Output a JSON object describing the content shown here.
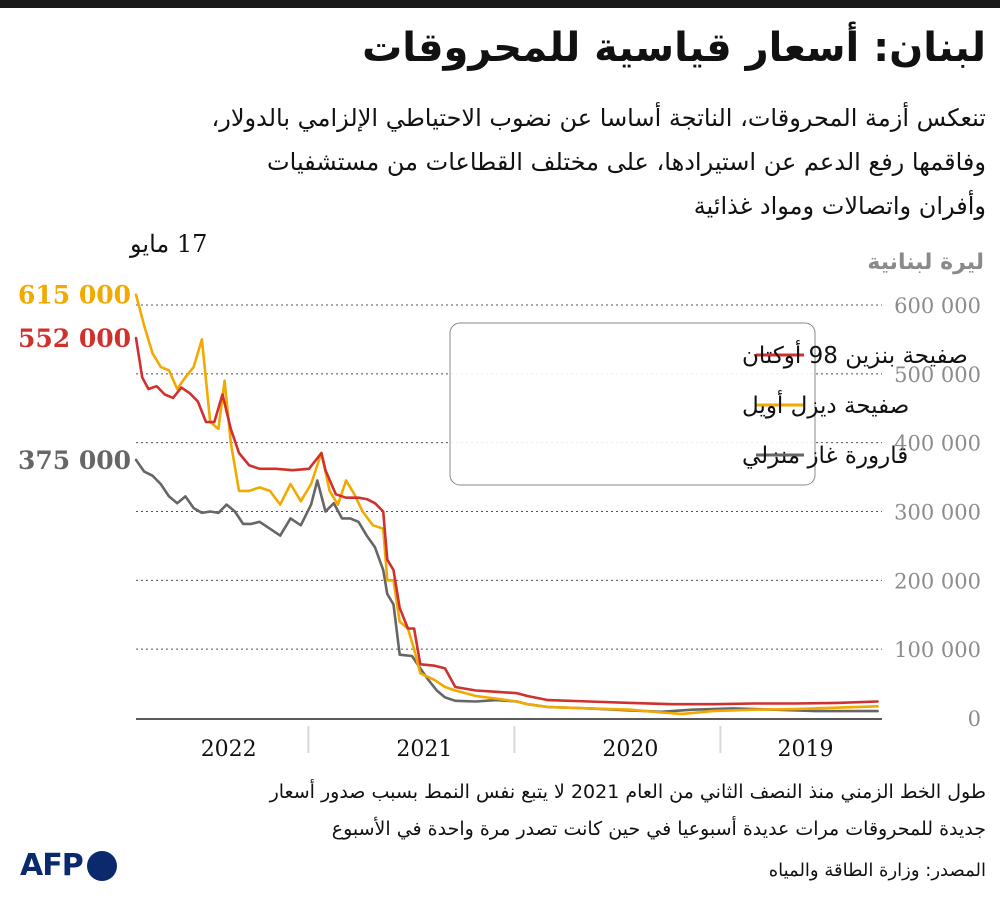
{
  "header": {
    "title": "لبنان: أسعار قياسية للمحروقات",
    "subtitle_lines": [
      "تنعكس أزمة المحروقات، الناتجة أساسا عن نضوب الاحتياطي الإلزامي بالدولار،",
      "وفاقمها رفع الدعم عن استيرادها، على مختلف القطاعات من مستشفيات",
      "وأفران واتصالات ومواد غذائية"
    ]
  },
  "footer": {
    "note_lines": [
      "طول الخط الزمني منذ النصف الثاني من العام 2021 لا يتبع نفس النمط بسبب صدور أسعار",
      "جديدة للمحروقات مرات عديدة أسبوعيا في حين كانت تصدر مرة واحدة في الأسبوع"
    ],
    "source": "المصدر: وزارة الطاقة والمياه",
    "logo_text": "AFP"
  },
  "chart_data": {
    "type": "line",
    "title": "لبنان: أسعار قياسية للمحروقات",
    "ylabel": "ليرة لبنانية",
    "ylim": [
      0,
      600000
    ],
    "y_ticks": [
      0,
      100000,
      200000,
      300000,
      400000,
      500000,
      600000
    ],
    "y_tick_labels": [
      "0",
      "100 000",
      "200 000",
      "300 000",
      "400 000",
      "500 000",
      "600 000"
    ],
    "x_axis_direction": "right-to-left (time runs from right to left)",
    "x_categories": [
      "2022",
      "2021",
      "2020",
      "2019"
    ],
    "x_category_spans": [
      [
        0,
        0.9
      ],
      [
        0.9,
        1.9
      ],
      [
        1.9,
        2.9
      ],
      [
        2.9,
        3.6
      ]
    ],
    "x_unit": "time position from the most recent date (left edge = 0) towards the past",
    "latest_date_label": "17 مايو",
    "grid": "horizontal dashed lines",
    "legend_position": "upper-middle, boxed",
    "series": [
      {
        "name": "صفيحة بنزين 98 أوكتان",
        "color": "#d0312d",
        "last_value": 552000,
        "last_value_label": "552 000",
        "points": [
          [
            0,
            552000
          ],
          [
            0.03,
            495000
          ],
          [
            0.06,
            478000
          ],
          [
            0.1,
            482000
          ],
          [
            0.14,
            470000
          ],
          [
            0.18,
            465000
          ],
          [
            0.22,
            480000
          ],
          [
            0.26,
            472000
          ],
          [
            0.3,
            460000
          ],
          [
            0.34,
            430000
          ],
          [
            0.38,
            430000
          ],
          [
            0.42,
            470000
          ],
          [
            0.46,
            420000
          ],
          [
            0.5,
            385000
          ],
          [
            0.55,
            367000
          ],
          [
            0.6,
            362000
          ],
          [
            0.68,
            362000
          ],
          [
            0.76,
            360000
          ],
          [
            0.84,
            362000
          ],
          [
            0.9,
            385000
          ],
          [
            0.92,
            360000
          ],
          [
            0.97,
            325000
          ],
          [
            1.02,
            320000
          ],
          [
            1.08,
            320000
          ],
          [
            1.12,
            318000
          ],
          [
            1.16,
            312000
          ],
          [
            1.2,
            300000
          ],
          [
            1.22,
            230000
          ],
          [
            1.25,
            215000
          ],
          [
            1.28,
            160000
          ],
          [
            1.32,
            130000
          ],
          [
            1.35,
            130000
          ],
          [
            1.38,
            78000
          ],
          [
            1.45,
            76000
          ],
          [
            1.5,
            72000
          ],
          [
            1.55,
            45000
          ],
          [
            1.65,
            40000
          ],
          [
            1.75,
            38000
          ],
          [
            1.85,
            36000
          ],
          [
            1.9,
            32000
          ],
          [
            2.0,
            26000
          ],
          [
            2.2,
            24000
          ],
          [
            2.4,
            22000
          ],
          [
            2.6,
            20000
          ],
          [
            2.8,
            20000
          ],
          [
            3.0,
            21000
          ],
          [
            3.2,
            21000
          ],
          [
            3.4,
            22000
          ],
          [
            3.6,
            24000
          ]
        ]
      },
      {
        "name": "صفيحة ديزل أويل",
        "color": "#f2a900",
        "last_value": 615000,
        "last_value_label": "615 000",
        "points": [
          [
            0,
            615000
          ],
          [
            0.04,
            570000
          ],
          [
            0.08,
            530000
          ],
          [
            0.12,
            510000
          ],
          [
            0.16,
            505000
          ],
          [
            0.2,
            478000
          ],
          [
            0.24,
            495000
          ],
          [
            0.28,
            510000
          ],
          [
            0.32,
            550000
          ],
          [
            0.36,
            430000
          ],
          [
            0.4,
            420000
          ],
          [
            0.43,
            490000
          ],
          [
            0.46,
            400000
          ],
          [
            0.5,
            330000
          ],
          [
            0.55,
            330000
          ],
          [
            0.6,
            335000
          ],
          [
            0.65,
            330000
          ],
          [
            0.7,
            310000
          ],
          [
            0.75,
            340000
          ],
          [
            0.8,
            315000
          ],
          [
            0.85,
            340000
          ],
          [
            0.9,
            385000
          ],
          [
            0.94,
            330000
          ],
          [
            0.98,
            310000
          ],
          [
            1.02,
            345000
          ],
          [
            1.06,
            325000
          ],
          [
            1.1,
            300000
          ],
          [
            1.15,
            280000
          ],
          [
            1.2,
            275000
          ],
          [
            1.22,
            200000
          ],
          [
            1.25,
            200000
          ],
          [
            1.28,
            140000
          ],
          [
            1.32,
            130000
          ],
          [
            1.35,
            100000
          ],
          [
            1.38,
            65000
          ],
          [
            1.45,
            55000
          ],
          [
            1.5,
            45000
          ],
          [
            1.55,
            40000
          ],
          [
            1.65,
            32000
          ],
          [
            1.75,
            28000
          ],
          [
            1.85,
            24000
          ],
          [
            1.9,
            20000
          ],
          [
            2.0,
            16000
          ],
          [
            2.2,
            14000
          ],
          [
            2.4,
            12000
          ],
          [
            2.55,
            8000
          ],
          [
            2.65,
            6000
          ],
          [
            2.8,
            10000
          ],
          [
            3.0,
            12000
          ],
          [
            3.2,
            13000
          ],
          [
            3.4,
            15000
          ],
          [
            3.6,
            17000
          ]
        ]
      },
      {
        "name": "قارورة غاز منزلي",
        "color": "#666666",
        "last_value": 375000,
        "last_value_label": "375 000",
        "points": [
          [
            0,
            375000
          ],
          [
            0.04,
            358000
          ],
          [
            0.08,
            352000
          ],
          [
            0.12,
            340000
          ],
          [
            0.16,
            322000
          ],
          [
            0.2,
            312000
          ],
          [
            0.24,
            322000
          ],
          [
            0.28,
            305000
          ],
          [
            0.32,
            298000
          ],
          [
            0.36,
            300000
          ],
          [
            0.4,
            298000
          ],
          [
            0.44,
            310000
          ],
          [
            0.48,
            300000
          ],
          [
            0.52,
            282000
          ],
          [
            0.56,
            282000
          ],
          [
            0.6,
            285000
          ],
          [
            0.65,
            275000
          ],
          [
            0.7,
            265000
          ],
          [
            0.75,
            290000
          ],
          [
            0.8,
            280000
          ],
          [
            0.85,
            310000
          ],
          [
            0.88,
            345000
          ],
          [
            0.92,
            300000
          ],
          [
            0.96,
            312000
          ],
          [
            1.0,
            290000
          ],
          [
            1.04,
            290000
          ],
          [
            1.08,
            285000
          ],
          [
            1.12,
            265000
          ],
          [
            1.16,
            248000
          ],
          [
            1.2,
            215000
          ],
          [
            1.22,
            180000
          ],
          [
            1.25,
            165000
          ],
          [
            1.28,
            92000
          ],
          [
            1.34,
            90000
          ],
          [
            1.38,
            72000
          ],
          [
            1.42,
            55000
          ],
          [
            1.46,
            40000
          ],
          [
            1.5,
            30000
          ],
          [
            1.55,
            25000
          ],
          [
            1.65,
            24000
          ],
          [
            1.75,
            26000
          ],
          [
            1.85,
            24000
          ],
          [
            1.9,
            20000
          ],
          [
            2.0,
            16000
          ],
          [
            2.2,
            14000
          ],
          [
            2.4,
            11000
          ],
          [
            2.55,
            9000
          ],
          [
            2.7,
            12000
          ],
          [
            2.9,
            14000
          ],
          [
            3.1,
            12000
          ],
          [
            3.3,
            10000
          ],
          [
            3.6,
            10000
          ]
        ]
      }
    ]
  }
}
